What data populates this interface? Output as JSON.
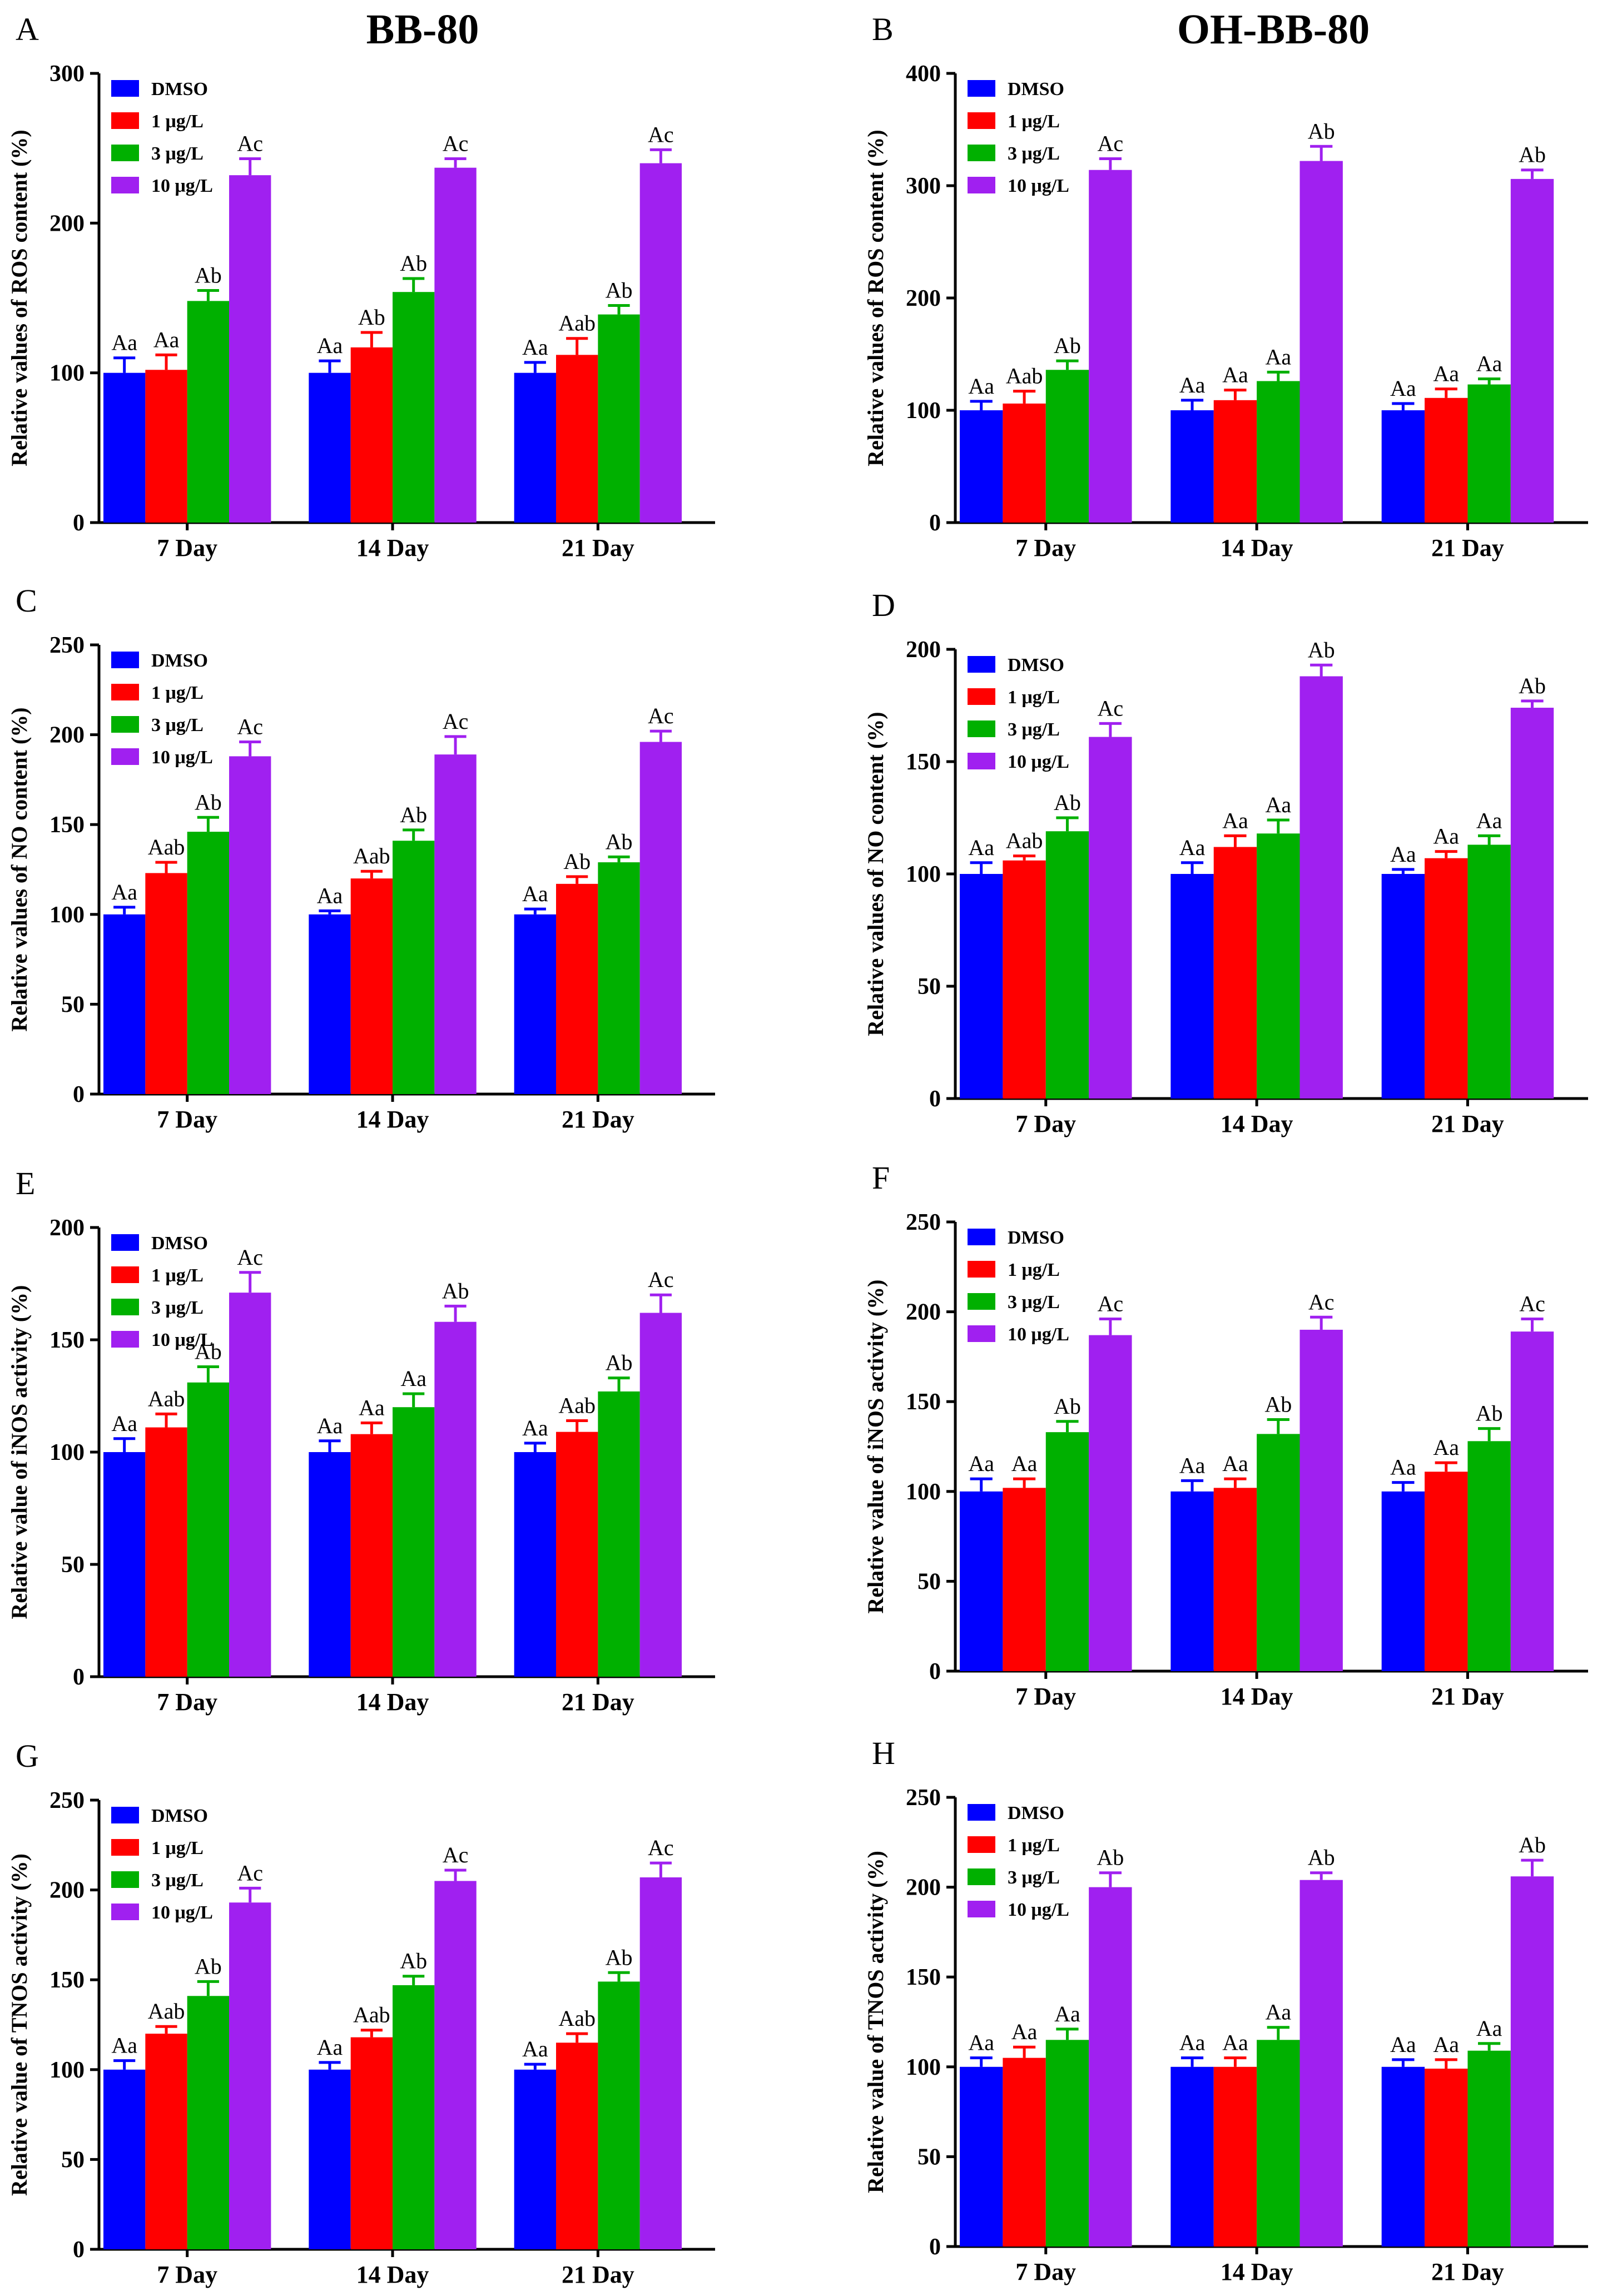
{
  "figure": {
    "column_titles": [
      "BB-80",
      "OH-BB-80"
    ]
  },
  "colors": {
    "DMSO": "#0000ff",
    "1 μg/L": "#ff0000",
    "3 μg/L": "#00b000",
    "10 μg/L": "#a020f0",
    "axis": "#000000"
  },
  "chart_data": [
    {
      "panel": "A",
      "type": "bar",
      "title": "BB-80",
      "ylabel": "Relative values of ROS content (%)",
      "xlabel": "",
      "ylim": [
        0,
        300
      ],
      "yticks": [
        0,
        100,
        200,
        300
      ],
      "categories": [
        "7 Day",
        "14 Day",
        "21 Day"
      ],
      "legend": "top-left",
      "series": [
        {
          "name": "DMSO",
          "values": [
            100,
            100,
            100
          ],
          "errors": [
            10,
            8,
            7
          ],
          "labels": [
            "Aa",
            "Aa",
            "Aa"
          ]
        },
        {
          "name": "1 μg/L",
          "values": [
            102,
            117,
            112
          ],
          "errors": [
            10,
            10,
            11
          ],
          "labels": [
            "Aa",
            "Ab",
            "Aab"
          ]
        },
        {
          "name": "3 μg/L",
          "values": [
            148,
            154,
            139
          ],
          "errors": [
            7,
            9,
            6
          ],
          "labels": [
            "Ab",
            "Ab",
            "Ab"
          ]
        },
        {
          "name": "10 μg/L",
          "values": [
            232,
            237,
            240
          ],
          "errors": [
            11,
            6,
            9
          ],
          "labels": [
            "Ac",
            "Ac",
            "Ac"
          ]
        }
      ]
    },
    {
      "panel": "B",
      "type": "bar",
      "title": "OH-BB-80",
      "ylabel": "Relative values of ROS content (%)",
      "xlabel": "",
      "ylim": [
        0,
        400
      ],
      "yticks": [
        0,
        100,
        200,
        300,
        400
      ],
      "categories": [
        "7 Day",
        "14 Day",
        "21 Day"
      ],
      "legend": "top-left",
      "series": [
        {
          "name": "DMSO",
          "values": [
            100,
            100,
            100
          ],
          "errors": [
            8,
            9,
            6
          ],
          "labels": [
            "Aa",
            "Aa",
            "Aa"
          ]
        },
        {
          "name": "1 μg/L",
          "values": [
            106,
            109,
            111
          ],
          "errors": [
            11,
            9,
            8
          ],
          "labels": [
            "Aab",
            "Aa",
            "Aa"
          ]
        },
        {
          "name": "3 μg/L",
          "values": [
            136,
            126,
            123
          ],
          "errors": [
            8,
            8,
            5
          ],
          "labels": [
            "Ab",
            "Aa",
            "Aa"
          ]
        },
        {
          "name": "10 μg/L",
          "values": [
            314,
            322,
            306
          ],
          "errors": [
            10,
            13,
            8
          ],
          "labels": [
            "Ac",
            "Ab",
            "Ab"
          ]
        }
      ]
    },
    {
      "panel": "C",
      "type": "bar",
      "ylabel": "Relative values of NO content (%)",
      "xlabel": "",
      "ylim": [
        0,
        250
      ],
      "yticks": [
        0,
        50,
        100,
        150,
        200,
        250
      ],
      "categories": [
        "7 Day",
        "14 Day",
        "21 Day"
      ],
      "legend": "top-left",
      "series": [
        {
          "name": "DMSO",
          "values": [
            100,
            100,
            100
          ],
          "errors": [
            4,
            2,
            3
          ],
          "labels": [
            "Aa",
            "Aa",
            "Aa"
          ]
        },
        {
          "name": "1 μg/L",
          "values": [
            123,
            120,
            117
          ],
          "errors": [
            6,
            4,
            4
          ],
          "labels": [
            "Aab",
            "Aab",
            "Ab"
          ]
        },
        {
          "name": "3 μg/L",
          "values": [
            146,
            141,
            129
          ],
          "errors": [
            8,
            6,
            3
          ],
          "labels": [
            "Ab",
            "Ab",
            "Ab"
          ]
        },
        {
          "name": "10 μg/L",
          "values": [
            188,
            189,
            196
          ],
          "errors": [
            8,
            10,
            6
          ],
          "labels": [
            "Ac",
            "Ac",
            "Ac"
          ]
        }
      ]
    },
    {
      "panel": "D",
      "type": "bar",
      "ylabel": "Relative values of NO content (%)",
      "xlabel": "",
      "ylim": [
        0,
        200
      ],
      "yticks": [
        0,
        50,
        100,
        150,
        200
      ],
      "categories": [
        "7 Day",
        "14 Day",
        "21 Day"
      ],
      "legend": "top-left",
      "series": [
        {
          "name": "DMSO",
          "values": [
            100,
            100,
            100
          ],
          "errors": [
            5,
            5,
            2
          ],
          "labels": [
            "Aa",
            "Aa",
            "Aa"
          ]
        },
        {
          "name": "1 μg/L",
          "values": [
            106,
            112,
            107
          ],
          "errors": [
            2,
            5,
            3
          ],
          "labels": [
            "Aab",
            "Aa",
            "Aa"
          ]
        },
        {
          "name": "3 μg/L",
          "values": [
            119,
            118,
            113
          ],
          "errors": [
            6,
            6,
            4
          ],
          "labels": [
            "Ab",
            "Aa",
            "Aa"
          ]
        },
        {
          "name": "10 μg/L",
          "values": [
            161,
            188,
            174
          ],
          "errors": [
            6,
            5,
            3
          ],
          "labels": [
            "Ac",
            "Ab",
            "Ab"
          ]
        }
      ]
    },
    {
      "panel": "E",
      "type": "bar",
      "ylabel": "Relative value of iNOS activity (%)",
      "xlabel": "",
      "ylim": [
        0,
        200
      ],
      "yticks": [
        0,
        50,
        100,
        150,
        200
      ],
      "categories": [
        "7 Day",
        "14 Day",
        "21 Day"
      ],
      "legend": "top-left",
      "series": [
        {
          "name": "DMSO",
          "values": [
            100,
            100,
            100
          ],
          "errors": [
            6,
            5,
            4
          ],
          "labels": [
            "Aa",
            "Aa",
            "Aa"
          ]
        },
        {
          "name": "1 μg/L",
          "values": [
            111,
            108,
            109
          ],
          "errors": [
            6,
            5,
            5
          ],
          "labels": [
            "Aab",
            "Aa",
            "Aab"
          ]
        },
        {
          "name": "3 μg/L",
          "values": [
            131,
            120,
            127
          ],
          "errors": [
            7,
            6,
            6
          ],
          "labels": [
            "Ab",
            "Aa",
            "Ab"
          ]
        },
        {
          "name": "10 μg/L",
          "values": [
            171,
            158,
            162
          ],
          "errors": [
            9,
            7,
            8
          ],
          "labels": [
            "Ac",
            "Ab",
            "Ac"
          ]
        }
      ]
    },
    {
      "panel": "F",
      "type": "bar",
      "ylabel": "Relative value of iNOS activity (%)",
      "xlabel": "",
      "ylim": [
        0,
        250
      ],
      "yticks": [
        0,
        50,
        100,
        150,
        200,
        250
      ],
      "categories": [
        "7 Day",
        "14 Day",
        "21 Day"
      ],
      "legend": "top-left",
      "series": [
        {
          "name": "DMSO",
          "values": [
            100,
            100,
            100
          ],
          "errors": [
            7,
            6,
            5
          ],
          "labels": [
            "Aa",
            "Aa",
            "Aa"
          ]
        },
        {
          "name": "1 μg/L",
          "values": [
            102,
            102,
            111
          ],
          "errors": [
            5,
            5,
            5
          ],
          "labels": [
            "Aa",
            "Aa",
            "Aa"
          ]
        },
        {
          "name": "3 μg/L",
          "values": [
            133,
            132,
            128
          ],
          "errors": [
            6,
            8,
            7
          ],
          "labels": [
            "Ab",
            "Ab",
            "Ab"
          ]
        },
        {
          "name": "10 μg/L",
          "values": [
            187,
            190,
            189
          ],
          "errors": [
            9,
            7,
            7
          ],
          "labels": [
            "Ac",
            "Ac",
            "Ac"
          ]
        }
      ]
    },
    {
      "panel": "G",
      "type": "bar",
      "ylabel": "Relative value of TNOS activity (%)",
      "xlabel": "",
      "ylim": [
        0,
        250
      ],
      "yticks": [
        0,
        50,
        100,
        150,
        200,
        250
      ],
      "categories": [
        "7 Day",
        "14 Day",
        "21 Day"
      ],
      "legend": "top-left",
      "series": [
        {
          "name": "DMSO",
          "values": [
            100,
            100,
            100
          ],
          "errors": [
            5,
            4,
            3
          ],
          "labels": [
            "Aa",
            "Aa",
            "Aa"
          ]
        },
        {
          "name": "1 μg/L",
          "values": [
            120,
            118,
            115
          ],
          "errors": [
            4,
            4,
            5
          ],
          "labels": [
            "Aab",
            "Aab",
            "Aab"
          ]
        },
        {
          "name": "3 μg/L",
          "values": [
            141,
            147,
            149
          ],
          "errors": [
            8,
            5,
            5
          ],
          "labels": [
            "Ab",
            "Ab",
            "Ab"
          ]
        },
        {
          "name": "10 μg/L",
          "values": [
            193,
            205,
            207
          ],
          "errors": [
            8,
            6,
            8
          ],
          "labels": [
            "Ac",
            "Ac",
            "Ac"
          ]
        }
      ]
    },
    {
      "panel": "H",
      "type": "bar",
      "ylabel": "Relative value of TNOS activity (%)",
      "xlabel": "",
      "ylim": [
        0,
        250
      ],
      "yticks": [
        0,
        50,
        100,
        150,
        200,
        250
      ],
      "categories": [
        "7 Day",
        "14 Day",
        "21 Day"
      ],
      "legend": "top-left",
      "series": [
        {
          "name": "DMSO",
          "values": [
            100,
            100,
            100
          ],
          "errors": [
            5,
            5,
            4
          ],
          "labels": [
            "Aa",
            "Aa",
            "Aa"
          ]
        },
        {
          "name": "1 μg/L",
          "values": [
            105,
            100,
            99
          ],
          "errors": [
            6,
            5,
            5
          ],
          "labels": [
            "Aa",
            "Aa",
            "Aa"
          ]
        },
        {
          "name": "3 μg/L",
          "values": [
            115,
            115,
            109
          ],
          "errors": [
            6,
            7,
            4
          ],
          "labels": [
            "Aa",
            "Aa",
            "Aa"
          ]
        },
        {
          "name": "10 μg/L",
          "values": [
            200,
            204,
            206
          ],
          "errors": [
            8,
            4,
            9
          ],
          "labels": [
            "Ab",
            "Ab",
            "Ab"
          ]
        }
      ]
    }
  ]
}
